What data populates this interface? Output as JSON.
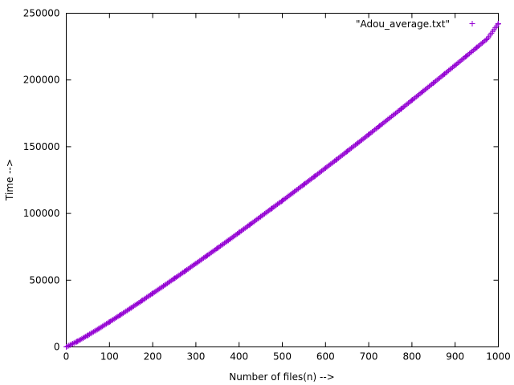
{
  "chart_data": {
    "type": "scatter",
    "title": "",
    "xlabel": "Number of files(n) -->",
    "ylabel": "Time -->",
    "xlim": [
      0,
      1000
    ],
    "ylim": [
      0,
      250000
    ],
    "x_ticks": [
      0,
      100,
      200,
      300,
      400,
      500,
      600,
      700,
      800,
      900,
      1000
    ],
    "y_ticks": [
      0,
      50000,
      100000,
      150000,
      200000,
      250000
    ],
    "grid": false,
    "legend_position": "top-right",
    "marker": "plus",
    "series": [
      {
        "name": "\"Adou_average.txt\"",
        "color": "#9400d3",
        "x": [
          0,
          25,
          50,
          75,
          100,
          125,
          150,
          175,
          200,
          225,
          250,
          275,
          300,
          325,
          350,
          375,
          400,
          425,
          450,
          475,
          500,
          525,
          550,
          575,
          600,
          625,
          650,
          675,
          700,
          725,
          750,
          775,
          800,
          825,
          850,
          875,
          900,
          925,
          950,
          975,
          1000
        ],
        "y": [
          0,
          4000,
          8700,
          13600,
          18700,
          23900,
          29200,
          34600,
          40100,
          45600,
          51200,
          56800,
          62500,
          68200,
          74000,
          79800,
          85700,
          91600,
          97600,
          103600,
          109500,
          115600,
          121700,
          127800,
          134000,
          140200,
          146500,
          152800,
          159100,
          165500,
          171900,
          178300,
          184800,
          191300,
          197800,
          204400,
          211000,
          217600,
          224300,
          231000,
          242300
        ]
      }
    ]
  }
}
